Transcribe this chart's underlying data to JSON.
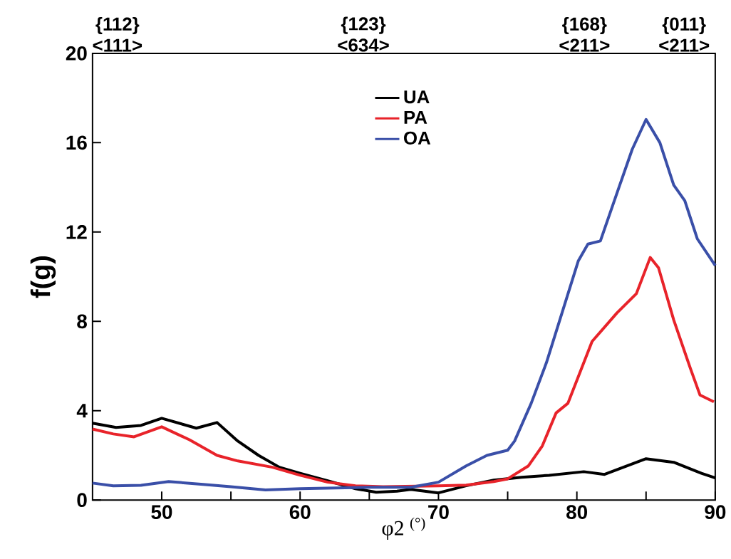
{
  "chart_data": {
    "type": "line",
    "xlabel": "φ2 $^{(°)}$",
    "ylabel": "f(g)",
    "xlim": [
      45,
      90
    ],
    "ylim": [
      0,
      20
    ],
    "xticks": [
      50,
      {
        "value": 55,
        "label": null
      },
      60,
      {
        "value": 65,
        "label": null
      },
      70,
      {
        "value": 75,
        "label": null
      },
      80,
      {
        "value": 85,
        "label": null
      },
      90
    ],
    "yticks": [
      0,
      4,
      8,
      12,
      16,
      20
    ],
    "legend": "top",
    "grid": false,
    "marker": "none",
    "line_style": "solid",
    "annotations": [
      "{112} <111>",
      "{123} <634>",
      "{168} <211>",
      "{011} <211>"
    ],
    "series": [
      {
        "name": "UA",
        "color": "#000000",
        "x": [
          45,
          46.7,
          48.5,
          50,
          52.5,
          54,
          55.5,
          57,
          58.5,
          60,
          62,
          64,
          65.5,
          67,
          68,
          70,
          72,
          74,
          76,
          78,
          80.5,
          82,
          85,
          87,
          89,
          90
        ],
        "values": [
          3.44,
          3.25,
          3.34,
          3.66,
          3.22,
          3.47,
          2.64,
          2.0,
          1.47,
          1.2,
          0.86,
          0.51,
          0.35,
          0.4,
          0.48,
          0.32,
          0.64,
          0.89,
          1.02,
          1.11,
          1.27,
          1.15,
          1.85,
          1.69,
          1.2,
          0.99
        ]
      },
      {
        "name": "PA",
        "color": "#e8232a",
        "x": [
          45,
          46.5,
          48,
          50,
          52,
          54,
          55.5,
          58,
          60,
          62,
          64,
          66,
          70,
          72,
          74,
          75,
          76.5,
          77.5,
          78.5,
          79.35,
          81.1,
          82.9,
          84.3,
          85.3,
          85.9,
          87,
          88.2,
          88.9,
          89.9
        ],
        "values": [
          3.18,
          2.96,
          2.83,
          3.28,
          2.7,
          2.0,
          1.75,
          1.47,
          1.11,
          0.8,
          0.64,
          0.6,
          0.64,
          0.67,
          0.83,
          0.95,
          1.53,
          2.42,
          3.9,
          4.33,
          7.1,
          8.38,
          9.24,
          10.86,
          10.4,
          8.06,
          5.9,
          4.7,
          4.4
        ]
      },
      {
        "name": "OA",
        "color": "#3a4fa8",
        "x": [
          45,
          46.5,
          48.5,
          50.5,
          53,
          55,
          57.5,
          60,
          65,
          68,
          70,
          72,
          73.5,
          75,
          75.5,
          76.7,
          77.8,
          80.1,
          80.8,
          81.7,
          83.1,
          84,
          85,
          86,
          87,
          87.8,
          88.7,
          90
        ],
        "values": [
          0.76,
          0.64,
          0.66,
          0.83,
          0.7,
          0.6,
          0.45,
          0.51,
          0.57,
          0.57,
          0.8,
          1.53,
          2.0,
          2.23,
          2.64,
          4.33,
          6.15,
          10.7,
          11.46,
          11.6,
          14.1,
          15.7,
          17.04,
          16.0,
          14.1,
          13.4,
          11.7,
          10.5
        ]
      }
    ]
  }
}
